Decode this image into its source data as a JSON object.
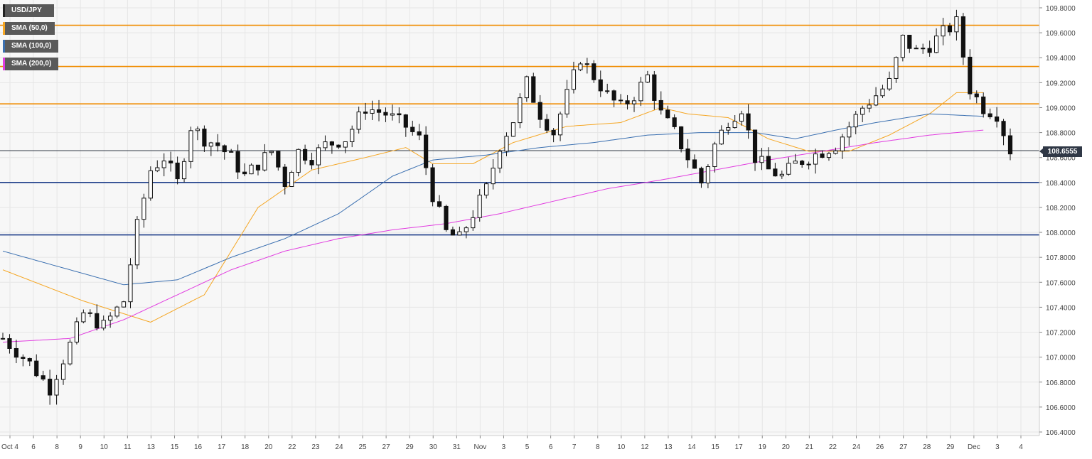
{
  "legend": {
    "symbol": "USD/JPY",
    "sma50": "SMA (50,0)",
    "sma100": "SMA (100,0)",
    "sma200": "SMA (200,0)"
  },
  "last_price_label": "108.6555",
  "colors": {
    "background": "#f7f7f7",
    "grid": "#e6e6e6",
    "axis_text": "#444444",
    "candle": "#111111",
    "sma50": "#f5a623",
    "sma100": "#3a6fb0",
    "sma200": "#e13ce0",
    "resistance": "#f08c00",
    "support": "#1f3f8a",
    "last_price_line": "#303846"
  },
  "chart_data": {
    "type": "candlestick",
    "timeframe": "4H",
    "x_tick_labels": [
      "Oct 4",
      "6",
      "8",
      "9",
      "10",
      "11",
      "13",
      "15",
      "16",
      "17",
      "18",
      "20",
      "22",
      "23",
      "24",
      "25",
      "27",
      "29",
      "30",
      "31",
      "Nov",
      "3",
      "5",
      "6",
      "7",
      "8",
      "10",
      "12",
      "13",
      "14",
      "15",
      "17",
      "19",
      "20",
      "21",
      "22",
      "24",
      "26",
      "27",
      "28",
      "29",
      "Dec",
      "3",
      "4"
    ],
    "ylim": [
      106.4,
      109.8
    ],
    "y_ticks": [
      "109.8000",
      "109.6000",
      "109.4000",
      "109.2000",
      "109.0000",
      "108.8000",
      "108.6000",
      "108.4000",
      "108.2000",
      "108.0000",
      "107.8000",
      "107.6000",
      "107.4000",
      "107.2000",
      "107.0000",
      "106.8000",
      "106.6000",
      "106.4000"
    ],
    "resistance_levels": [
      109.66,
      109.33,
      109.03
    ],
    "support_levels": [
      108.4,
      107.98
    ],
    "last_price": 108.6555,
    "series": [
      {
        "name": "USD/JPY",
        "close_path": [
          [
            0,
            107.15
          ],
          [
            4,
            106.95
          ],
          [
            7,
            106.75
          ],
          [
            10,
            107.1
          ],
          [
            12,
            107.35
          ],
          [
            15,
            107.25
          ],
          [
            18,
            107.45
          ],
          [
            20,
            108.05
          ],
          [
            22,
            108.5
          ],
          [
            24,
            108.6
          ],
          [
            26,
            108.4
          ],
          [
            28,
            108.85
          ],
          [
            30,
            108.75
          ],
          [
            32,
            108.7
          ],
          [
            34,
            108.6
          ],
          [
            36,
            108.45
          ],
          [
            38,
            108.55
          ],
          [
            40,
            108.65
          ],
          [
            42,
            108.4
          ],
          [
            44,
            108.65
          ],
          [
            46,
            108.6
          ],
          [
            48,
            108.7
          ],
          [
            51,
            108.75
          ],
          [
            54,
            109.0
          ],
          [
            57,
            108.95
          ],
          [
            60,
            108.85
          ],
          [
            62,
            108.75
          ],
          [
            64,
            108.3
          ],
          [
            66,
            108.0
          ],
          [
            68,
            107.95
          ],
          [
            70,
            108.15
          ],
          [
            72,
            108.35
          ],
          [
            74,
            108.7
          ],
          [
            76,
            108.9
          ],
          [
            78,
            109.2
          ],
          [
            80,
            108.95
          ],
          [
            82,
            108.8
          ],
          [
            84,
            109.1
          ],
          [
            86,
            109.4
          ],
          [
            88,
            109.25
          ],
          [
            90,
            109.1
          ],
          [
            92,
            109.0
          ],
          [
            94,
            109.1
          ],
          [
            96,
            109.25
          ],
          [
            98,
            108.95
          ],
          [
            100,
            108.8
          ],
          [
            102,
            108.6
          ],
          [
            104,
            108.4
          ],
          [
            106,
            108.7
          ],
          [
            108,
            108.9
          ],
          [
            110,
            109.0
          ],
          [
            112,
            108.6
          ],
          [
            114,
            108.5
          ],
          [
            116,
            108.45
          ],
          [
            118,
            108.55
          ],
          [
            120,
            108.6
          ],
          [
            122,
            108.65
          ],
          [
            124,
            108.7
          ],
          [
            126,
            108.85
          ],
          [
            128,
            109.0
          ],
          [
            130,
            109.1
          ],
          [
            132,
            109.2
          ],
          [
            134,
            109.55
          ],
          [
            136,
            109.45
          ],
          [
            138,
            109.5
          ],
          [
            140,
            109.6
          ],
          [
            142,
            109.68
          ],
          [
            144,
            109.15
          ],
          [
            146,
            109.0
          ],
          [
            148,
            108.95
          ],
          [
            150,
            108.66
          ]
        ]
      },
      {
        "name": "SMA (50,0)",
        "values": [
          [
            0,
            107.7
          ],
          [
            12,
            107.45
          ],
          [
            22,
            107.28
          ],
          [
            30,
            107.5
          ],
          [
            38,
            108.2
          ],
          [
            46,
            108.5
          ],
          [
            54,
            108.6
          ],
          [
            60,
            108.68
          ],
          [
            64,
            108.55
          ],
          [
            70,
            108.55
          ],
          [
            76,
            108.72
          ],
          [
            84,
            108.85
          ],
          [
            92,
            108.88
          ],
          [
            98,
            109.0
          ],
          [
            102,
            108.95
          ],
          [
            108,
            108.92
          ],
          [
            114,
            108.75
          ],
          [
            120,
            108.65
          ],
          [
            126,
            108.65
          ],
          [
            132,
            108.78
          ],
          [
            138,
            108.95
          ],
          [
            142,
            109.12
          ],
          [
            146,
            109.12
          ]
        ]
      },
      {
        "name": "SMA (100,0)",
        "values": [
          [
            0,
            107.85
          ],
          [
            10,
            107.7
          ],
          [
            18,
            107.58
          ],
          [
            26,
            107.62
          ],
          [
            34,
            107.8
          ],
          [
            42,
            107.95
          ],
          [
            50,
            108.15
          ],
          [
            58,
            108.45
          ],
          [
            64,
            108.58
          ],
          [
            72,
            108.62
          ],
          [
            80,
            108.68
          ],
          [
            88,
            108.72
          ],
          [
            96,
            108.78
          ],
          [
            104,
            108.8
          ],
          [
            112,
            108.8
          ],
          [
            118,
            108.75
          ],
          [
            124,
            108.82
          ],
          [
            130,
            108.88
          ],
          [
            138,
            108.95
          ],
          [
            146,
            108.93
          ]
        ]
      },
      {
        "name": "SMA (200,0)",
        "values": [
          [
            0,
            107.12
          ],
          [
            10,
            107.15
          ],
          [
            18,
            107.3
          ],
          [
            26,
            107.5
          ],
          [
            34,
            107.7
          ],
          [
            42,
            107.85
          ],
          [
            50,
            107.95
          ],
          [
            58,
            108.02
          ],
          [
            66,
            108.07
          ],
          [
            74,
            108.15
          ],
          [
            82,
            108.25
          ],
          [
            90,
            108.35
          ],
          [
            98,
            108.42
          ],
          [
            106,
            108.5
          ],
          [
            114,
            108.58
          ],
          [
            122,
            108.65
          ],
          [
            130,
            108.72
          ],
          [
            138,
            108.78
          ],
          [
            146,
            108.82
          ]
        ]
      }
    ]
  }
}
